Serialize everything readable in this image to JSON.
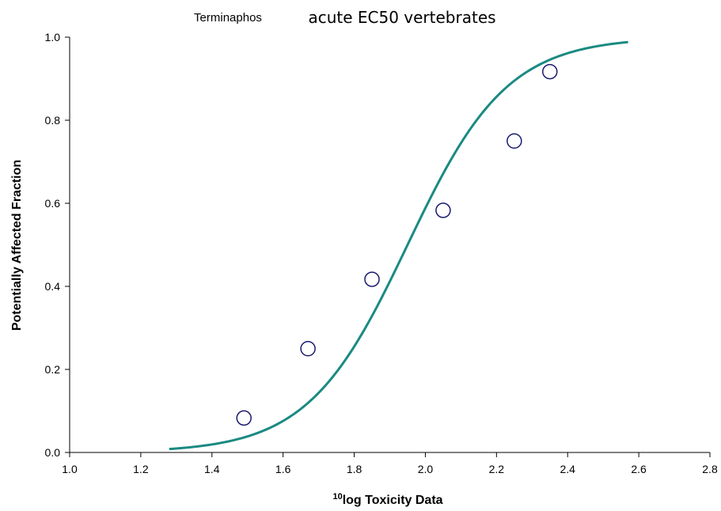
{
  "chart_data": {
    "type": "scatter",
    "subtitle": "Terminaphos",
    "title": "acute EC50 vertebrates",
    "xlabel_sup": "10",
    "xlabel": "log Toxicity Data",
    "ylabel": "Potentially Affected Fraction",
    "xlim": [
      1.0,
      2.8
    ],
    "ylim": [
      0.0,
      1.0
    ],
    "xticks": [
      1.0,
      1.2,
      1.4,
      1.6,
      1.8,
      2.0,
      2.2,
      2.4,
      2.6,
      2.8
    ],
    "yticks": [
      0.0,
      0.2,
      0.4,
      0.6,
      0.8,
      1.0
    ],
    "xtick_labels": [
      "1.0",
      "1.2",
      "1.4",
      "1.6",
      "1.8",
      "2.0",
      "2.2",
      "2.4",
      "2.6",
      "2.8"
    ],
    "ytick_labels": [
      "0.0",
      "0.2",
      "0.4",
      "0.6",
      "0.8",
      "1.0"
    ],
    "grid": false,
    "points": [
      {
        "x": 1.49,
        "y": 0.083
      },
      {
        "x": 1.67,
        "y": 0.25
      },
      {
        "x": 1.85,
        "y": 0.417
      },
      {
        "x": 2.05,
        "y": 0.583
      },
      {
        "x": 2.25,
        "y": 0.75
      },
      {
        "x": 2.35,
        "y": 0.917
      }
    ],
    "fit_curve": {
      "type": "logistic",
      "mu": 1.95,
      "scale": 0.14,
      "x_range": [
        1.28,
        2.57
      ]
    },
    "colors": {
      "curve": "#1a8a82",
      "marker": "#1a1a6e",
      "axis": "#000000"
    }
  }
}
